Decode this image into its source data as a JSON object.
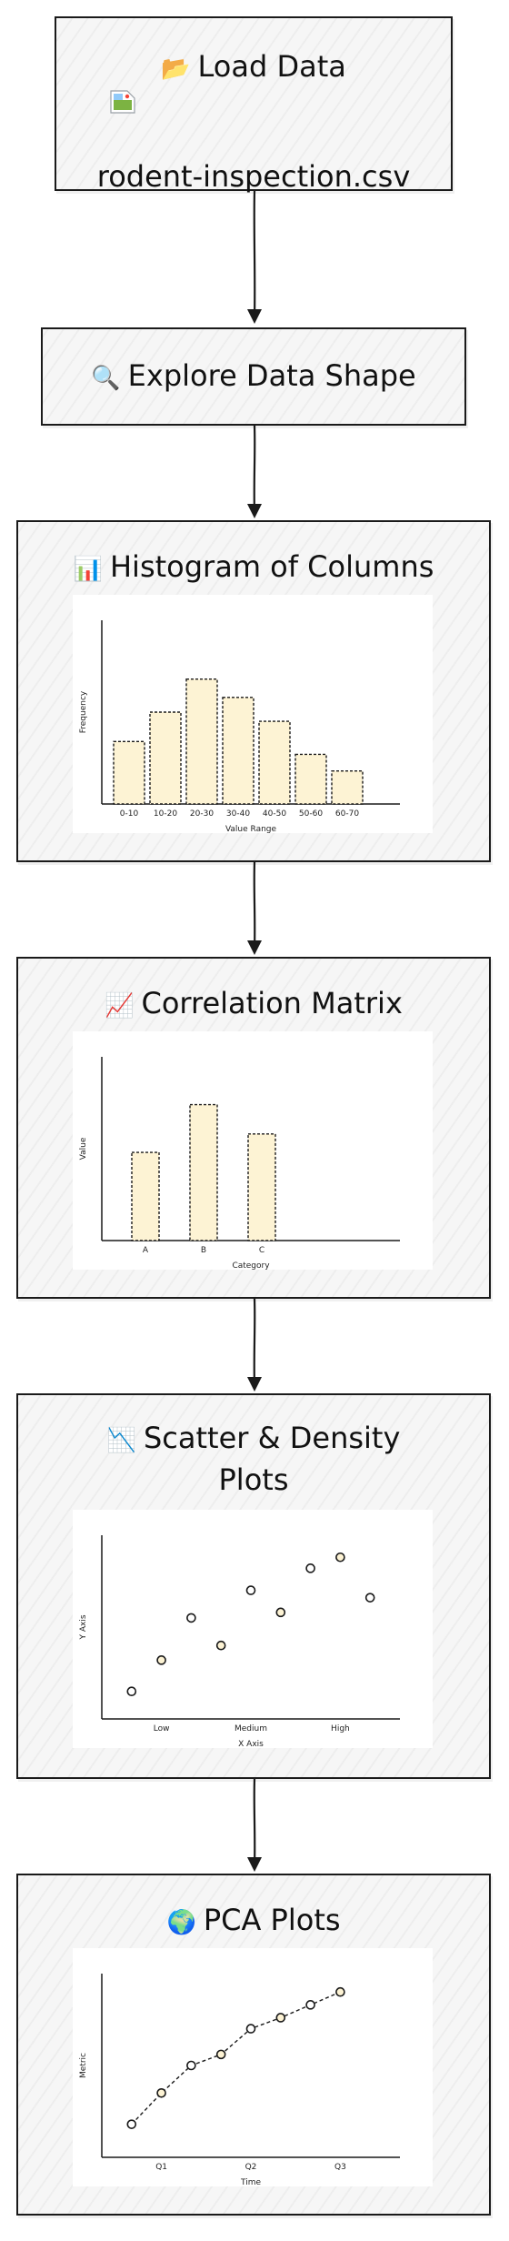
{
  "nodes": {
    "load": {
      "icon": "📂",
      "title": "Load Data",
      "file": "rodent-inspection.csv"
    },
    "explore": {
      "icon": "🔍",
      "title": "Explore Data Shape"
    },
    "histogram": {
      "icon": "📊",
      "title": "Histogram of Columns"
    },
    "correlation": {
      "icon": "📈",
      "title": "Correlation Matrix"
    },
    "scatter": {
      "icon": "📉",
      "title_line1": "Scatter & Density",
      "title_line2": "Plots"
    },
    "pca": {
      "icon": "🌍",
      "title": "PCA Plots"
    }
  },
  "colors": {
    "bar_fill": "#fdf3d4",
    "stroke": "#1a1a1a",
    "node_bg": "#f6f6f6"
  },
  "charts": [
    {
      "id": "histogram",
      "chart_data": {
        "type": "bar",
        "categories": [
          "0-10",
          "10-20",
          "20-30",
          "30-40",
          "40-50",
          "50-60",
          "60-70"
        ],
        "values": [
          34,
          50,
          68,
          58,
          45,
          27,
          18
        ],
        "xlabel": "Value Range",
        "ylabel": "Frequency",
        "ylim": [
          0,
          100
        ]
      }
    },
    {
      "id": "correlation",
      "chart_data": {
        "type": "bar",
        "categories": [
          "A",
          "B",
          "C"
        ],
        "values": [
          48,
          74,
          58
        ],
        "xlabel": "Category",
        "ylabel": "Value",
        "ylim": [
          0,
          100
        ]
      }
    },
    {
      "id": "scatter",
      "chart_data": {
        "type": "scatter",
        "x": [
          1,
          2,
          3,
          4,
          5,
          6,
          7,
          8,
          9
        ],
        "y": [
          15,
          32,
          55,
          40,
          70,
          58,
          82,
          88,
          66
        ],
        "xticks": [
          {
            "at": 2,
            "label": "Low"
          },
          {
            "at": 5,
            "label": "Medium"
          },
          {
            "at": 8,
            "label": "High"
          }
        ],
        "xlim": [
          0,
          10
        ],
        "ylim": [
          0,
          100
        ],
        "xlabel": "X Axis",
        "ylabel": "Y Axis"
      }
    },
    {
      "id": "pca",
      "chart_data": {
        "type": "line",
        "x": [
          1,
          2,
          3,
          4,
          5,
          6,
          7,
          8
        ],
        "y": [
          18,
          35,
          50,
          56,
          70,
          76,
          83,
          90
        ],
        "xticks": [
          {
            "at": 2,
            "label": "Q1"
          },
          {
            "at": 5,
            "label": "Q2"
          },
          {
            "at": 8,
            "label": "Q3"
          }
        ],
        "xlim": [
          0,
          10
        ],
        "ylim": [
          0,
          100
        ],
        "xlabel": "Time",
        "ylabel": "Metric"
      }
    }
  ]
}
